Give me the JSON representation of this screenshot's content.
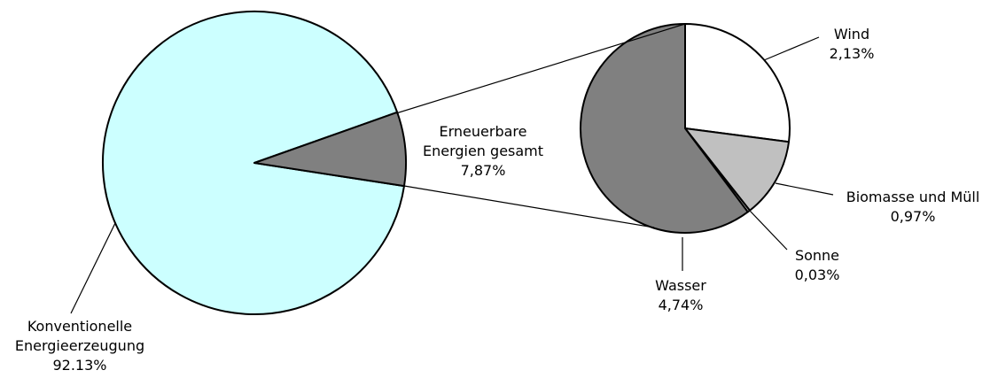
{
  "chart_data": [
    {
      "type": "pie",
      "categories": [
        "Konventionelle Energieerzeugung",
        "Erneuerbare Energien gesamt"
      ],
      "values": [
        92.13,
        7.87
      ],
      "value_labels": [
        "92.13%",
        "7,87%"
      ],
      "colors": [
        "#ccffff",
        "#808080"
      ]
    },
    {
      "type": "pie",
      "categories": [
        "Wind",
        "Biomasse und Müll",
        "Sonne",
        "Wasser"
      ],
      "values": [
        2.13,
        0.97,
        0.03,
        4.74
      ],
      "value_labels": [
        "2,13%",
        "0,97%",
        "0,03%",
        "4,74%"
      ],
      "colors": [
        "#ffffff",
        "#c0c0c0",
        "#c0c0c0",
        "#808080"
      ]
    }
  ]
}
